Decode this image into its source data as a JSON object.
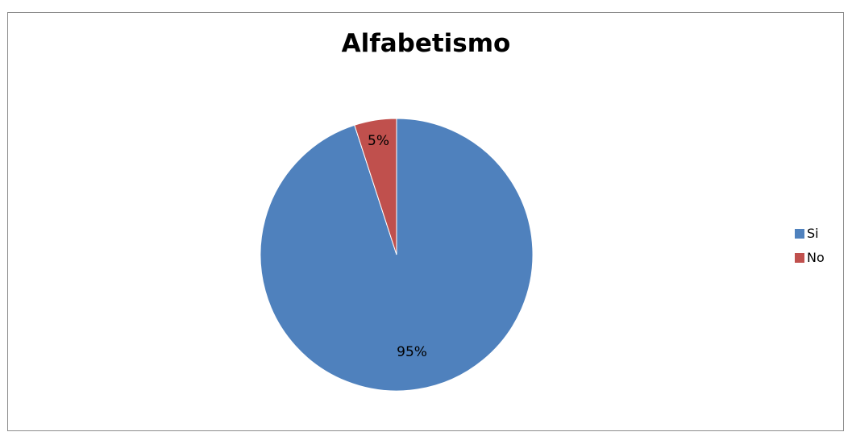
{
  "chart_data": {
    "type": "pie",
    "title": "Alfabetismo",
    "categories": [
      "Si",
      "No"
    ],
    "values": [
      95,
      5
    ],
    "data_labels": [
      "95%",
      "5%"
    ],
    "colors": [
      "#4f81bd",
      "#c0504d"
    ],
    "legend_position": "right"
  }
}
